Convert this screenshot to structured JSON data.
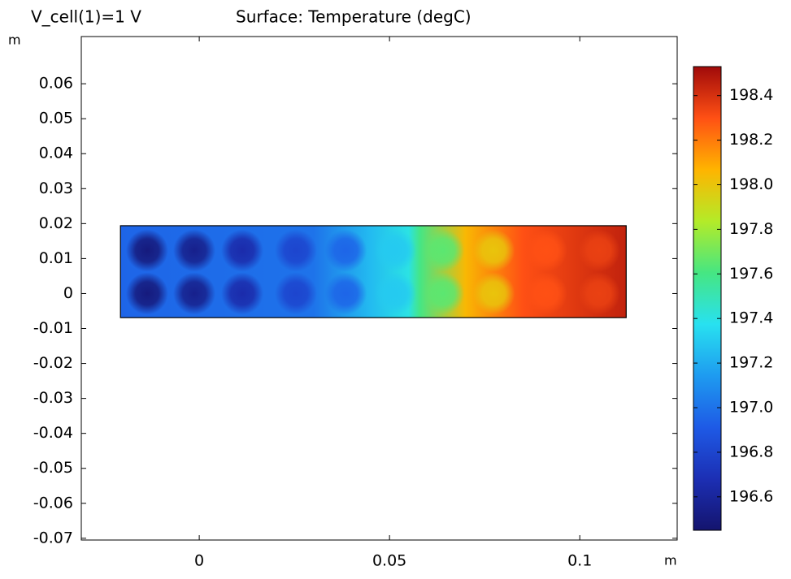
{
  "chart_data": {
    "type": "surface",
    "subtitle": "V_cell(1)=1 V",
    "title": "Surface: Temperature (degC)",
    "x_unit": "m",
    "y_unit": "m",
    "xlim": [
      -0.031,
      0.1256
    ],
    "ylim": [
      -0.0705,
      0.0735
    ],
    "xticks": [
      0,
      0.05,
      0.1
    ],
    "yticks": [
      0.06,
      0.05,
      0.04,
      0.03,
      0.02,
      0.01,
      0,
      -0.01,
      -0.02,
      -0.03,
      -0.04,
      -0.05,
      -0.06,
      -0.07
    ],
    "domain": {
      "x": [
        -0.0207,
        0.1122
      ],
      "y": [
        -0.0069,
        0.0194
      ]
    },
    "background": {
      "x": [
        -0.0207,
        0.03,
        0.045,
        0.055,
        0.058,
        0.07,
        0.085,
        0.1122
      ],
      "values": [
        196.95,
        197.0,
        197.25,
        197.4,
        197.6,
        198.05,
        198.3,
        198.45
      ]
    },
    "spots": {
      "x": [
        -0.0137,
        -0.0013,
        0.0113,
        0.0254,
        0.0385,
        0.0515,
        0.0641,
        0.0774,
        0.0912,
        0.1051
      ],
      "rows": [
        {
          "y": 0.0123,
          "values": [
            196.5,
            196.55,
            196.65,
            196.8,
            196.95,
            197.3,
            197.65,
            198.0,
            198.3,
            198.35
          ]
        },
        {
          "y": 0,
          "values": [
            196.5,
            196.55,
            196.65,
            196.8,
            196.95,
            197.3,
            197.65,
            198.0,
            198.3,
            198.35
          ]
        }
      ]
    },
    "colorbar": {
      "lim": [
        196.45,
        198.53
      ],
      "ticks": [
        196.6,
        196.8,
        {
          "value": 197,
          "label": "197.0"
        },
        197.2,
        197.4,
        197.6,
        197.8,
        {
          "value": 198,
          "label": "198.0"
        },
        198.2,
        198.4
      ],
      "colormap": [
        "#14146e",
        "#1c2fb4",
        "#1e5ae6",
        "#1e9bf0",
        "#28e1f0",
        "#46e682",
        "#b4eb28",
        "#ffb400",
        "#ff5014",
        "#a00a0a"
      ]
    }
  }
}
